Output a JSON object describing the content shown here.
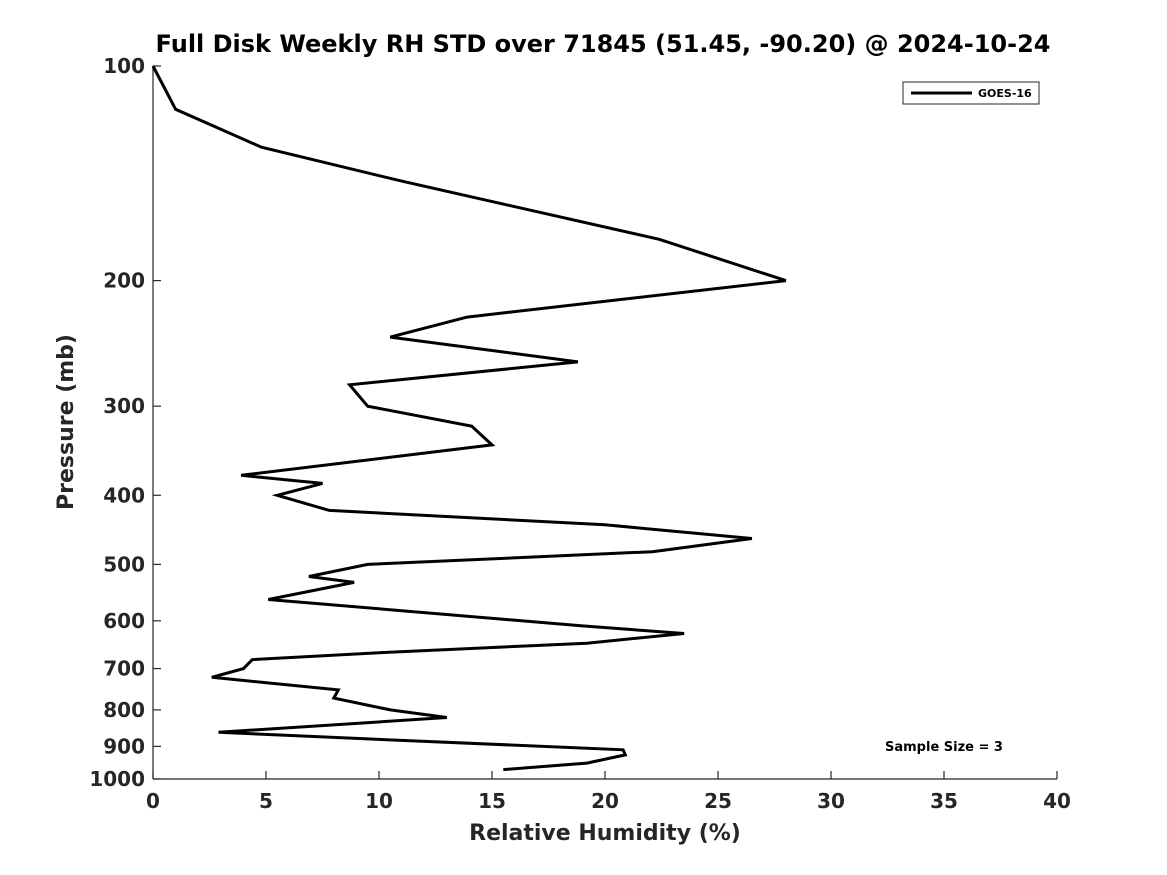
{
  "chart_data": {
    "type": "line",
    "title": "Full Disk Weekly RH STD over 71845 (51.45, -90.20) @ 2024-10-24",
    "xlabel": "Relative Humidity (%)",
    "ylabel": "Pressure (mb)",
    "xlim": [
      0,
      40
    ],
    "ylim": [
      100,
      1000
    ],
    "yscale": "log",
    "yreversed": true,
    "grid": false,
    "legend_location": "top-right",
    "xticks": [
      0,
      5,
      10,
      15,
      20,
      25,
      30,
      35,
      40
    ],
    "xtick_labels": [
      "0",
      "5",
      "10",
      "15",
      "20",
      "25",
      "30",
      "35",
      "40"
    ],
    "yticks": [
      100,
      200,
      300,
      400,
      500,
      600,
      700,
      800,
      900,
      1000
    ],
    "ytick_labels": [
      "100",
      "200",
      "300",
      "400",
      "500",
      "600",
      "700",
      "800",
      "900",
      "1000"
    ],
    "series": [
      {
        "name": "GOES-16",
        "color": "#000000",
        "x": [
          0.0,
          1.0,
          4.8,
          11.0,
          22.4,
          28.0,
          13.9,
          10.5,
          18.8,
          8.7,
          9.5,
          14.1,
          15.0,
          3.9,
          7.5,
          5.5,
          7.8,
          20.0,
          26.5,
          22.1,
          9.5,
          6.9,
          8.9,
          5.1,
          19.0,
          23.5,
          19.2,
          10.0,
          4.4,
          4.0,
          2.6,
          8.2,
          8.0,
          10.5,
          13.0,
          2.9,
          10.0,
          20.8,
          20.9,
          19.2,
          15.5
        ],
        "y": [
          100,
          115,
          130,
          145,
          175,
          200,
          225,
          240,
          260,
          280,
          300,
          320,
          340,
          375,
          385,
          400,
          420,
          440,
          460,
          480,
          500,
          520,
          530,
          560,
          610,
          625,
          645,
          665,
          680,
          700,
          720,
          750,
          770,
          800,
          820,
          860,
          880,
          910,
          925,
          950,
          970
        ]
      }
    ],
    "annotations": [
      "Sample Size = 3"
    ]
  }
}
